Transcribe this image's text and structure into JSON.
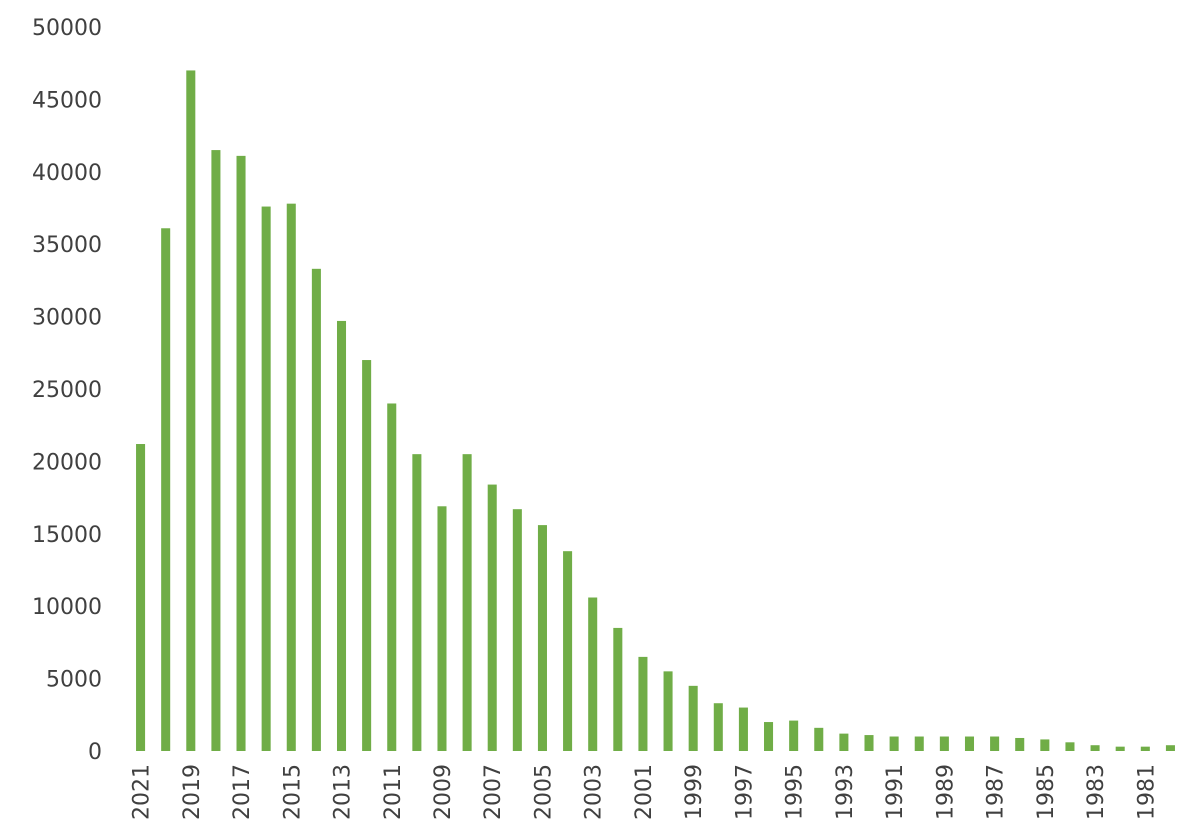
{
  "chart_data": {
    "type": "bar",
    "title": "",
    "xlabel": "",
    "ylabel": "",
    "ylim": [
      0,
      50000
    ],
    "yticks": [
      "0",
      "5000",
      "10000",
      "15000",
      "20000",
      "25000",
      "30000",
      "35000",
      "40000",
      "45000",
      "50000"
    ],
    "grid": false,
    "legend": "none",
    "bar_color": "#70ad47",
    "categories": [
      "2021",
      "2020",
      "2019",
      "2018",
      "2017",
      "2016",
      "2015",
      "2014",
      "2013",
      "2012",
      "2011",
      "2010",
      "2009",
      "2008",
      "2007",
      "2006",
      "2005",
      "2004",
      "2003",
      "2002",
      "2001",
      "2000",
      "1999",
      "1998",
      "1997",
      "1996",
      "1995",
      "1994",
      "1993",
      "1992",
      "1991",
      "1990",
      "1989",
      "1988",
      "1987",
      "1986",
      "1985",
      "1984",
      "1983",
      "1982",
      "1981",
      "1980"
    ],
    "tick_labels": [
      "2021",
      "",
      "2019",
      "",
      "2017",
      "",
      "2015",
      "",
      "2013",
      "",
      "2011",
      "",
      "2009",
      "",
      "2007",
      "",
      "2005",
      "",
      "2003",
      "",
      "2001",
      "",
      "1999",
      "",
      "1997",
      "",
      "1995",
      "",
      "1993",
      "",
      "1991",
      "",
      "1989",
      "",
      "1987",
      "",
      "1985",
      "",
      "1983",
      "",
      "1981",
      ""
    ],
    "values": [
      21200,
      36100,
      47000,
      41500,
      41100,
      37600,
      37800,
      33300,
      29700,
      27000,
      24000,
      20500,
      16900,
      20500,
      18400,
      16700,
      15600,
      13800,
      10600,
      8500,
      6500,
      5500,
      4500,
      3300,
      3000,
      2000,
      2100,
      1600,
      1200,
      1100,
      1000,
      1000,
      1000,
      1000,
      1000,
      900,
      800,
      600,
      400,
      300,
      300,
      400
    ]
  }
}
